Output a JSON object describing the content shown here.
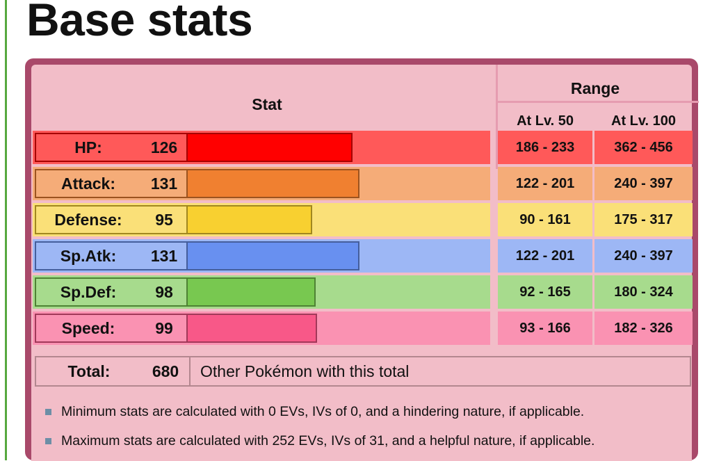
{
  "page": {
    "title": "Base stats"
  },
  "table": {
    "header": {
      "stat": "Stat",
      "range": "Range",
      "lv50": "At Lv. 50",
      "lv100": "At Lv. 100"
    },
    "max_stat_scale": 255,
    "rows": [
      {
        "label": "HP:",
        "value": "126",
        "base": 126,
        "lv50": "186 - 233",
        "lv100": "362 - 456",
        "row_bg": "#ff5959",
        "bar_color": "#ff0000",
        "border_color": "#a60000"
      },
      {
        "label": "Attack:",
        "value": "131",
        "base": 131,
        "lv50": "122 - 201",
        "lv100": "240 - 397",
        "row_bg": "#f5ac78",
        "bar_color": "#f08030",
        "border_color": "#9c531f"
      },
      {
        "label": "Defense:",
        "value": "95",
        "base": 95,
        "lv50": "90 - 161",
        "lv100": "175 - 317",
        "row_bg": "#fae078",
        "bar_color": "#f8d030",
        "border_color": "#a1871f"
      },
      {
        "label": "Sp.Atk:",
        "value": "131",
        "base": 131,
        "lv50": "122 - 201",
        "lv100": "240 - 397",
        "row_bg": "#9db7f5",
        "bar_color": "#6890f0",
        "border_color": "#445e9c"
      },
      {
        "label": "Sp.Def:",
        "value": "98",
        "base": 98,
        "lv50": "92 - 165",
        "lv100": "180 - 324",
        "row_bg": "#a7db8d",
        "bar_color": "#78c850",
        "border_color": "#4e8234"
      },
      {
        "label": "Speed:",
        "value": "99",
        "base": 99,
        "lv50": "93 - 166",
        "lv100": "182 - 326",
        "row_bg": "#fa92b2",
        "bar_color": "#f85888",
        "border_color": "#a13959"
      }
    ],
    "total": {
      "label": "Total:",
      "value": "680",
      "link": "Other Pokémon with this total"
    }
  },
  "notes": [
    "Minimum stats are calculated with 0 EVs, IVs of 0, and a hindering nature, if applicable.",
    "Maximum stats are calculated with 252 EVs, IVs of 31, and a helpful nature, if applicable."
  ]
}
